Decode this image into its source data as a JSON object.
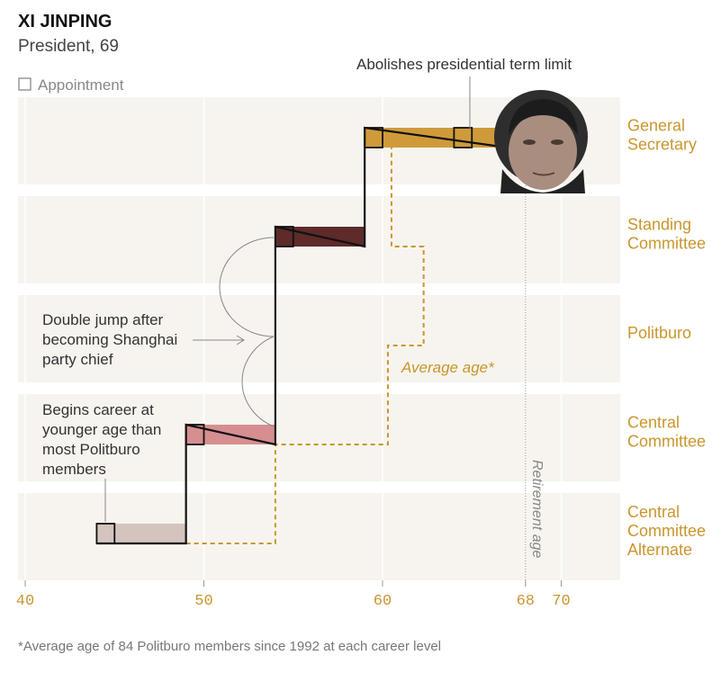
{
  "header": {
    "name": "XI JINPING",
    "subtitle": "President, 69",
    "legend_label": "Appointment"
  },
  "annotations": {
    "term_limit": "Abolishes presidential term limit",
    "double_jump": [
      "Double jump after",
      "becoming Shanghai",
      "party chief"
    ],
    "begins_career": [
      "Begins career at",
      "younger age than",
      "most Politburo",
      "members"
    ],
    "average_age": "Average age*",
    "retirement_age": "Retirement age"
  },
  "footnote": "*Average age of 84 Politburo members since 1992 at each career level",
  "chart_data": {
    "type": "step",
    "title": "XI JINPING",
    "subtitle": "President, 69",
    "x_axis": {
      "range": [
        40,
        73
      ],
      "ticks": [
        40,
        50,
        60,
        68,
        70
      ]
    },
    "levels": [
      {
        "label": [
          "Central",
          "Committee",
          "Alternate"
        ],
        "color": "#d3c4bd"
      },
      {
        "label": [
          "Central",
          "Committee"
        ],
        "color": "#d68e91"
      },
      {
        "label": [
          "Politburo"
        ],
        "color": null
      },
      {
        "label": [
          "Standing",
          "Committee"
        ],
        "color": "#5e2a2a"
      },
      {
        "label": [
          "General",
          "Secretary"
        ],
        "color": "#cf9b3a"
      }
    ],
    "career_spans": [
      {
        "level": 0,
        "start": 44,
        "end": 49
      },
      {
        "level": 1,
        "start": 49,
        "end": 54
      },
      {
        "level": 3,
        "start": 54,
        "end": 59
      },
      {
        "level": 4,
        "start": 59,
        "end": 67
      }
    ],
    "appointments": [
      {
        "age": 44,
        "level": 0
      },
      {
        "age": 49,
        "level": 1
      },
      {
        "age": 54,
        "level": 3
      },
      {
        "age": 59,
        "level": 4
      },
      {
        "age": 64,
        "level": 4
      }
    ],
    "average_age_path": [
      {
        "level": 0,
        "age": 54
      },
      {
        "level": 1,
        "age": 60.3
      },
      {
        "level": 2,
        "age": 62.3
      },
      {
        "level": 3,
        "age": 60.5
      },
      {
        "level": 4,
        "age": 60.5
      }
    ],
    "retirement_age": 68
  }
}
